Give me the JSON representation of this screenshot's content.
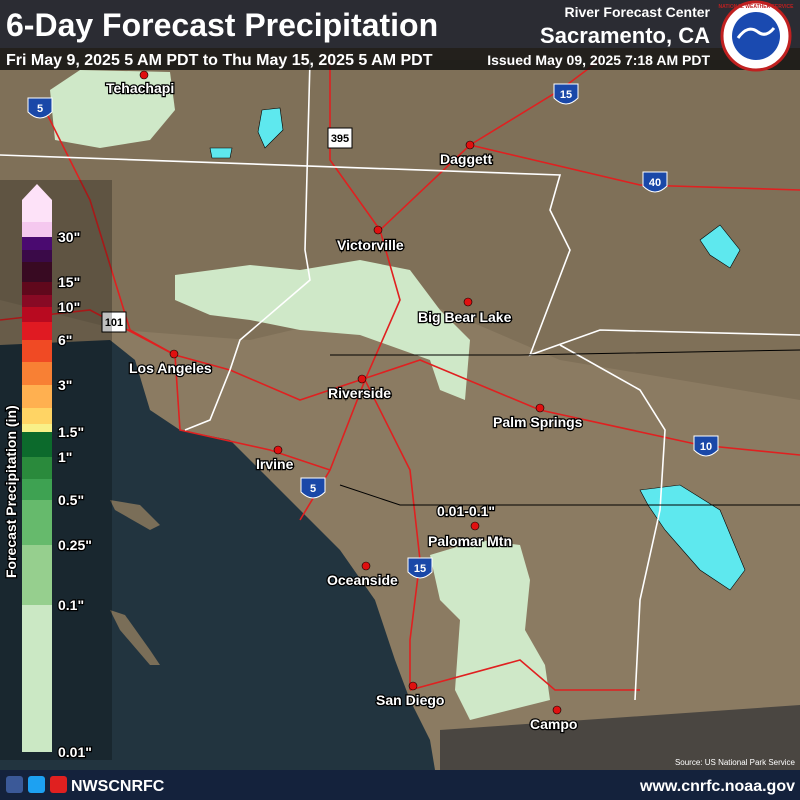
{
  "header": {
    "title": "6-Day Forecast Precipitation",
    "period": "Fri May 9, 2025 5 AM PDT to Thu May 15, 2025 5 AM PDT",
    "issued": "Issued May 09, 2025 7:18 AM PDT",
    "office": "River Forecast Center",
    "location": "Sacramento, CA",
    "logo": "NATIONAL WEATHER SERVICE"
  },
  "legend": {
    "title": "Forecast Precipitation (in)",
    "labels": [
      "30\"",
      "15\"",
      "10\"",
      "6\"",
      "3\"",
      "1.5\"",
      "1\"",
      "0.5\"",
      "0.25\"",
      "0.1\"",
      "0.01\""
    ]
  },
  "map": {
    "cities": [
      "Tehachapi",
      "Daggett",
      "Victorville",
      "Big Bear Lake",
      "Los Angeles",
      "Riverside",
      "Palm Springs",
      "Irvine",
      "Palomar Mtn",
      "Oceanside",
      "San Diego",
      "Campo"
    ],
    "annotation": "0.01-0.1\"",
    "highways": [
      "5",
      "15",
      "395",
      "40",
      "101",
      "10",
      "5",
      "15"
    ],
    "source": "Source: US National Park Service"
  },
  "footer": {
    "handle": "NWSCNRFC",
    "url": "www.cnrfc.noaa.gov"
  }
}
